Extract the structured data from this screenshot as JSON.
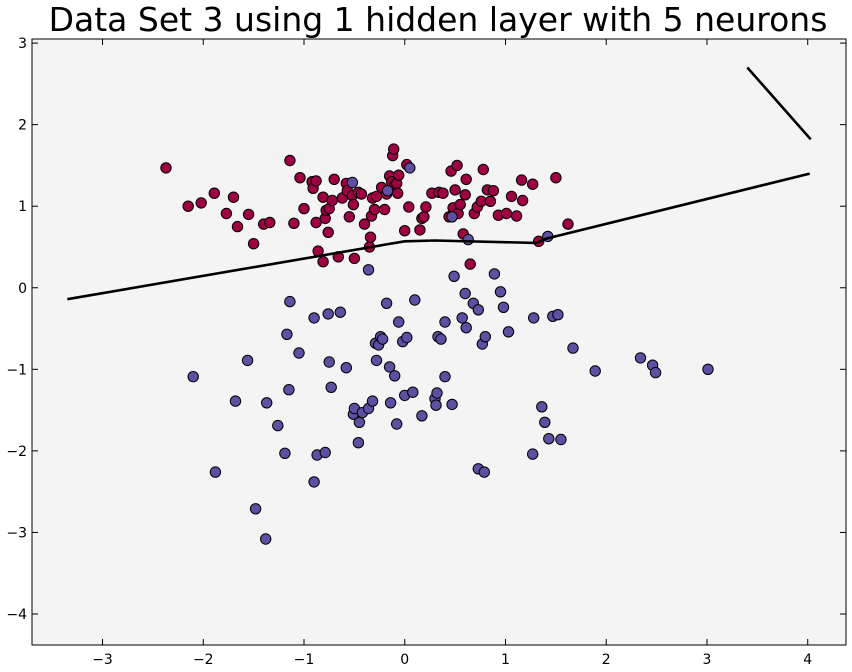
{
  "chart_data": {
    "type": "scatter",
    "title": "Data Set 3 using 1 hidden layer with 5 neurons",
    "xlabel": "",
    "ylabel": "",
    "xlim": [
      -3.7,
      4.38
    ],
    "ylim": [
      -4.38,
      3.05
    ],
    "xticks": [
      -3,
      -2,
      -1,
      0,
      1,
      2,
      3,
      4
    ],
    "yticks": [
      -4,
      -3,
      -2,
      -1,
      0,
      1,
      2,
      3
    ],
    "xtick_labels": [
      "−3",
      "−2",
      "−1",
      "0",
      "1",
      "2",
      "3",
      "4"
    ],
    "ytick_labels": [
      "−4",
      "−3",
      "−2",
      "−1",
      "0",
      "1",
      "2",
      "3"
    ],
    "grid": false,
    "background": "#f4f4f4",
    "colors": {
      "class_red": "#9e0142",
      "class_purple": "#5e4fa2",
      "boundary": "#000000"
    },
    "series": [
      {
        "class": "red",
        "points": [
          [
            -2.37,
            1.47
          ],
          [
            -2.15,
            1.0
          ],
          [
            -2.02,
            1.04
          ],
          [
            -1.89,
            1.16
          ],
          [
            -1.77,
            0.91
          ],
          [
            -1.7,
            1.11
          ],
          [
            -1.66,
            0.75
          ],
          [
            -1.55,
            0.9
          ],
          [
            -1.5,
            0.54
          ],
          [
            -1.4,
            0.78
          ],
          [
            -1.34,
            0.8
          ],
          [
            -1.14,
            1.56
          ],
          [
            -1.1,
            0.79
          ],
          [
            -1.04,
            1.35
          ],
          [
            -1.0,
            0.97
          ],
          [
            -0.92,
            1.3
          ],
          [
            -0.91,
            1.22
          ],
          [
            -0.88,
            1.31
          ],
          [
            -0.88,
            0.8
          ],
          [
            -0.86,
            0.45
          ],
          [
            -0.81,
            1.11
          ],
          [
            -0.81,
            0.32
          ],
          [
            -0.79,
            0.85
          ],
          [
            -0.78,
            0.95
          ],
          [
            -0.76,
            0.68
          ],
          [
            -0.75,
            0.97
          ],
          [
            -0.72,
            1.07
          ],
          [
            -0.7,
            1.33
          ],
          [
            -0.66,
            0.38
          ],
          [
            -0.62,
            1.1
          ],
          [
            -0.58,
            1.28
          ],
          [
            -0.57,
            1.19
          ],
          [
            -0.55,
            0.87
          ],
          [
            -0.52,
            1.13
          ],
          [
            -0.51,
            1.02
          ],
          [
            -0.5,
            0.36
          ],
          [
            -0.46,
            1.17
          ],
          [
            -0.43,
            1.15
          ],
          [
            -0.4,
            0.78
          ],
          [
            -0.35,
            0.5
          ],
          [
            -0.34,
            0.62
          ],
          [
            -0.33,
            0.88
          ],
          [
            -0.32,
            1.1
          ],
          [
            -0.3,
            0.96
          ],
          [
            -0.28,
            1.12
          ],
          [
            -0.23,
            1.23
          ],
          [
            -0.2,
            0.96
          ],
          [
            -0.18,
            1.15
          ],
          [
            -0.15,
            1.37
          ],
          [
            -0.13,
            1.3
          ],
          [
            -0.12,
            1.62
          ],
          [
            -0.11,
            1.7
          ],
          [
            -0.1,
            1.25
          ],
          [
            -0.08,
            1.28
          ],
          [
            -0.07,
            1.16
          ],
          [
            -0.06,
            1.38
          ],
          [
            0.0,
            0.7
          ],
          [
            0.02,
            1.51
          ],
          [
            0.04,
            0.99
          ],
          [
            0.15,
            0.71
          ],
          [
            0.17,
            0.85
          ],
          [
            0.19,
            0.87
          ],
          [
            0.21,
            0.99
          ],
          [
            0.27,
            1.16
          ],
          [
            0.34,
            1.17
          ],
          [
            0.38,
            1.16
          ],
          [
            0.44,
            0.87
          ],
          [
            0.46,
            1.43
          ],
          [
            0.48,
            0.98
          ],
          [
            0.5,
            1.2
          ],
          [
            0.52,
            1.5
          ],
          [
            0.53,
            0.91
          ],
          [
            0.55,
            1.02
          ],
          [
            0.58,
            0.66
          ],
          [
            0.6,
            1.14
          ],
          [
            0.61,
            1.33
          ],
          [
            0.65,
            0.29
          ],
          [
            0.69,
            0.91
          ],
          [
            0.72,
            0.99
          ],
          [
            0.76,
            1.06
          ],
          [
            0.78,
            1.45
          ],
          [
            0.82,
            1.2
          ],
          [
            0.85,
            1.06
          ],
          [
            0.88,
            1.19
          ],
          [
            0.93,
            0.89
          ],
          [
            1.01,
            0.91
          ],
          [
            1.06,
            1.12
          ],
          [
            1.11,
            0.88
          ],
          [
            1.16,
            1.32
          ],
          [
            1.17,
            1.07
          ],
          [
            1.27,
            1.27
          ],
          [
            1.33,
            0.57
          ],
          [
            1.5,
            1.35
          ],
          [
            1.62,
            0.78
          ]
        ]
      },
      {
        "class": "purple",
        "points": [
          [
            -2.1,
            -1.09
          ],
          [
            -1.88,
            -2.26
          ],
          [
            -1.68,
            -1.39
          ],
          [
            -1.56,
            -0.89
          ],
          [
            -1.48,
            -2.71
          ],
          [
            -1.38,
            -3.08
          ],
          [
            -1.37,
            -1.41
          ],
          [
            -1.26,
            -1.69
          ],
          [
            -1.19,
            -2.03
          ],
          [
            -1.17,
            -0.57
          ],
          [
            -1.15,
            -1.25
          ],
          [
            -1.14,
            -0.17
          ],
          [
            -1.05,
            -0.8
          ],
          [
            -0.9,
            -0.37
          ],
          [
            -0.9,
            -2.38
          ],
          [
            -0.87,
            -2.05
          ],
          [
            -0.79,
            -2.02
          ],
          [
            -0.76,
            -0.32
          ],
          [
            -0.75,
            -0.91
          ],
          [
            -0.73,
            -1.22
          ],
          [
            -0.64,
            -0.3
          ],
          [
            -0.58,
            -0.98
          ],
          [
            -0.51,
            -1.55
          ],
          [
            -0.5,
            -1.48
          ],
          [
            -0.46,
            -1.9
          ],
          [
            -0.45,
            -1.65
          ],
          [
            -0.42,
            -1.53
          ],
          [
            -0.36,
            -1.48
          ],
          [
            -0.32,
            -1.39
          ],
          [
            -0.29,
            -0.68
          ],
          [
            -0.28,
            -0.89
          ],
          [
            -0.26,
            -0.7
          ],
          [
            -0.24,
            -0.6
          ],
          [
            -0.22,
            -0.63
          ],
          [
            -0.18,
            -0.19
          ],
          [
            -0.15,
            -0.97
          ],
          [
            -0.14,
            -1.41
          ],
          [
            -0.1,
            -1.08
          ],
          [
            -0.08,
            -1.67
          ],
          [
            -0.06,
            -0.42
          ],
          [
            -0.02,
            -0.66
          ],
          [
            0.0,
            -1.32
          ],
          [
            0.02,
            -0.61
          ],
          [
            0.08,
            -1.28
          ],
          [
            0.1,
            -0.15
          ],
          [
            0.17,
            -1.57
          ],
          [
            0.3,
            -1.36
          ],
          [
            0.31,
            -1.44
          ],
          [
            0.32,
            -1.29
          ],
          [
            0.33,
            -0.6
          ],
          [
            0.36,
            -0.63
          ],
          [
            0.4,
            -0.42
          ],
          [
            0.4,
            -1.09
          ],
          [
            0.47,
            -1.43
          ],
          [
            0.49,
            0.14
          ],
          [
            0.57,
            -0.37
          ],
          [
            0.6,
            -0.07
          ],
          [
            0.61,
            -0.49
          ],
          [
            0.68,
            -0.19
          ],
          [
            0.73,
            -2.22
          ],
          [
            0.73,
            -0.27
          ],
          [
            0.77,
            -0.69
          ],
          [
            0.79,
            -2.26
          ],
          [
            0.8,
            -0.6
          ],
          [
            0.89,
            0.17
          ],
          [
            0.95,
            -0.05
          ],
          [
            0.98,
            -0.24
          ],
          [
            1.03,
            -0.54
          ],
          [
            1.27,
            -2.04
          ],
          [
            1.28,
            -0.37
          ],
          [
            1.36,
            -1.46
          ],
          [
            1.39,
            -1.65
          ],
          [
            1.42,
            0.63
          ],
          [
            1.43,
            -1.85
          ],
          [
            1.47,
            -0.35
          ],
          [
            1.52,
            -0.33
          ],
          [
            1.55,
            -1.86
          ],
          [
            1.67,
            -0.74
          ],
          [
            1.89,
            -1.02
          ],
          [
            2.34,
            -0.86
          ],
          [
            2.46,
            -0.95
          ],
          [
            2.49,
            -1.04
          ],
          [
            3.01,
            -1.0
          ],
          [
            -0.52,
            1.29
          ],
          [
            0.05,
            1.47
          ],
          [
            0.47,
            0.87
          ],
          [
            0.63,
            0.59
          ],
          [
            -0.36,
            0.22
          ],
          [
            -0.17,
            1.19
          ]
        ]
      }
    ],
    "boundary": [
      {
        "x": [
          -3.35,
          0.0,
          0.3,
          1.3,
          1.4,
          4.02
        ],
        "y": [
          -0.14,
          0.57,
          0.58,
          0.55,
          0.6,
          1.4
        ]
      },
      {
        "x": [
          3.4,
          4.03
        ],
        "y": [
          2.7,
          1.82
        ]
      }
    ]
  }
}
